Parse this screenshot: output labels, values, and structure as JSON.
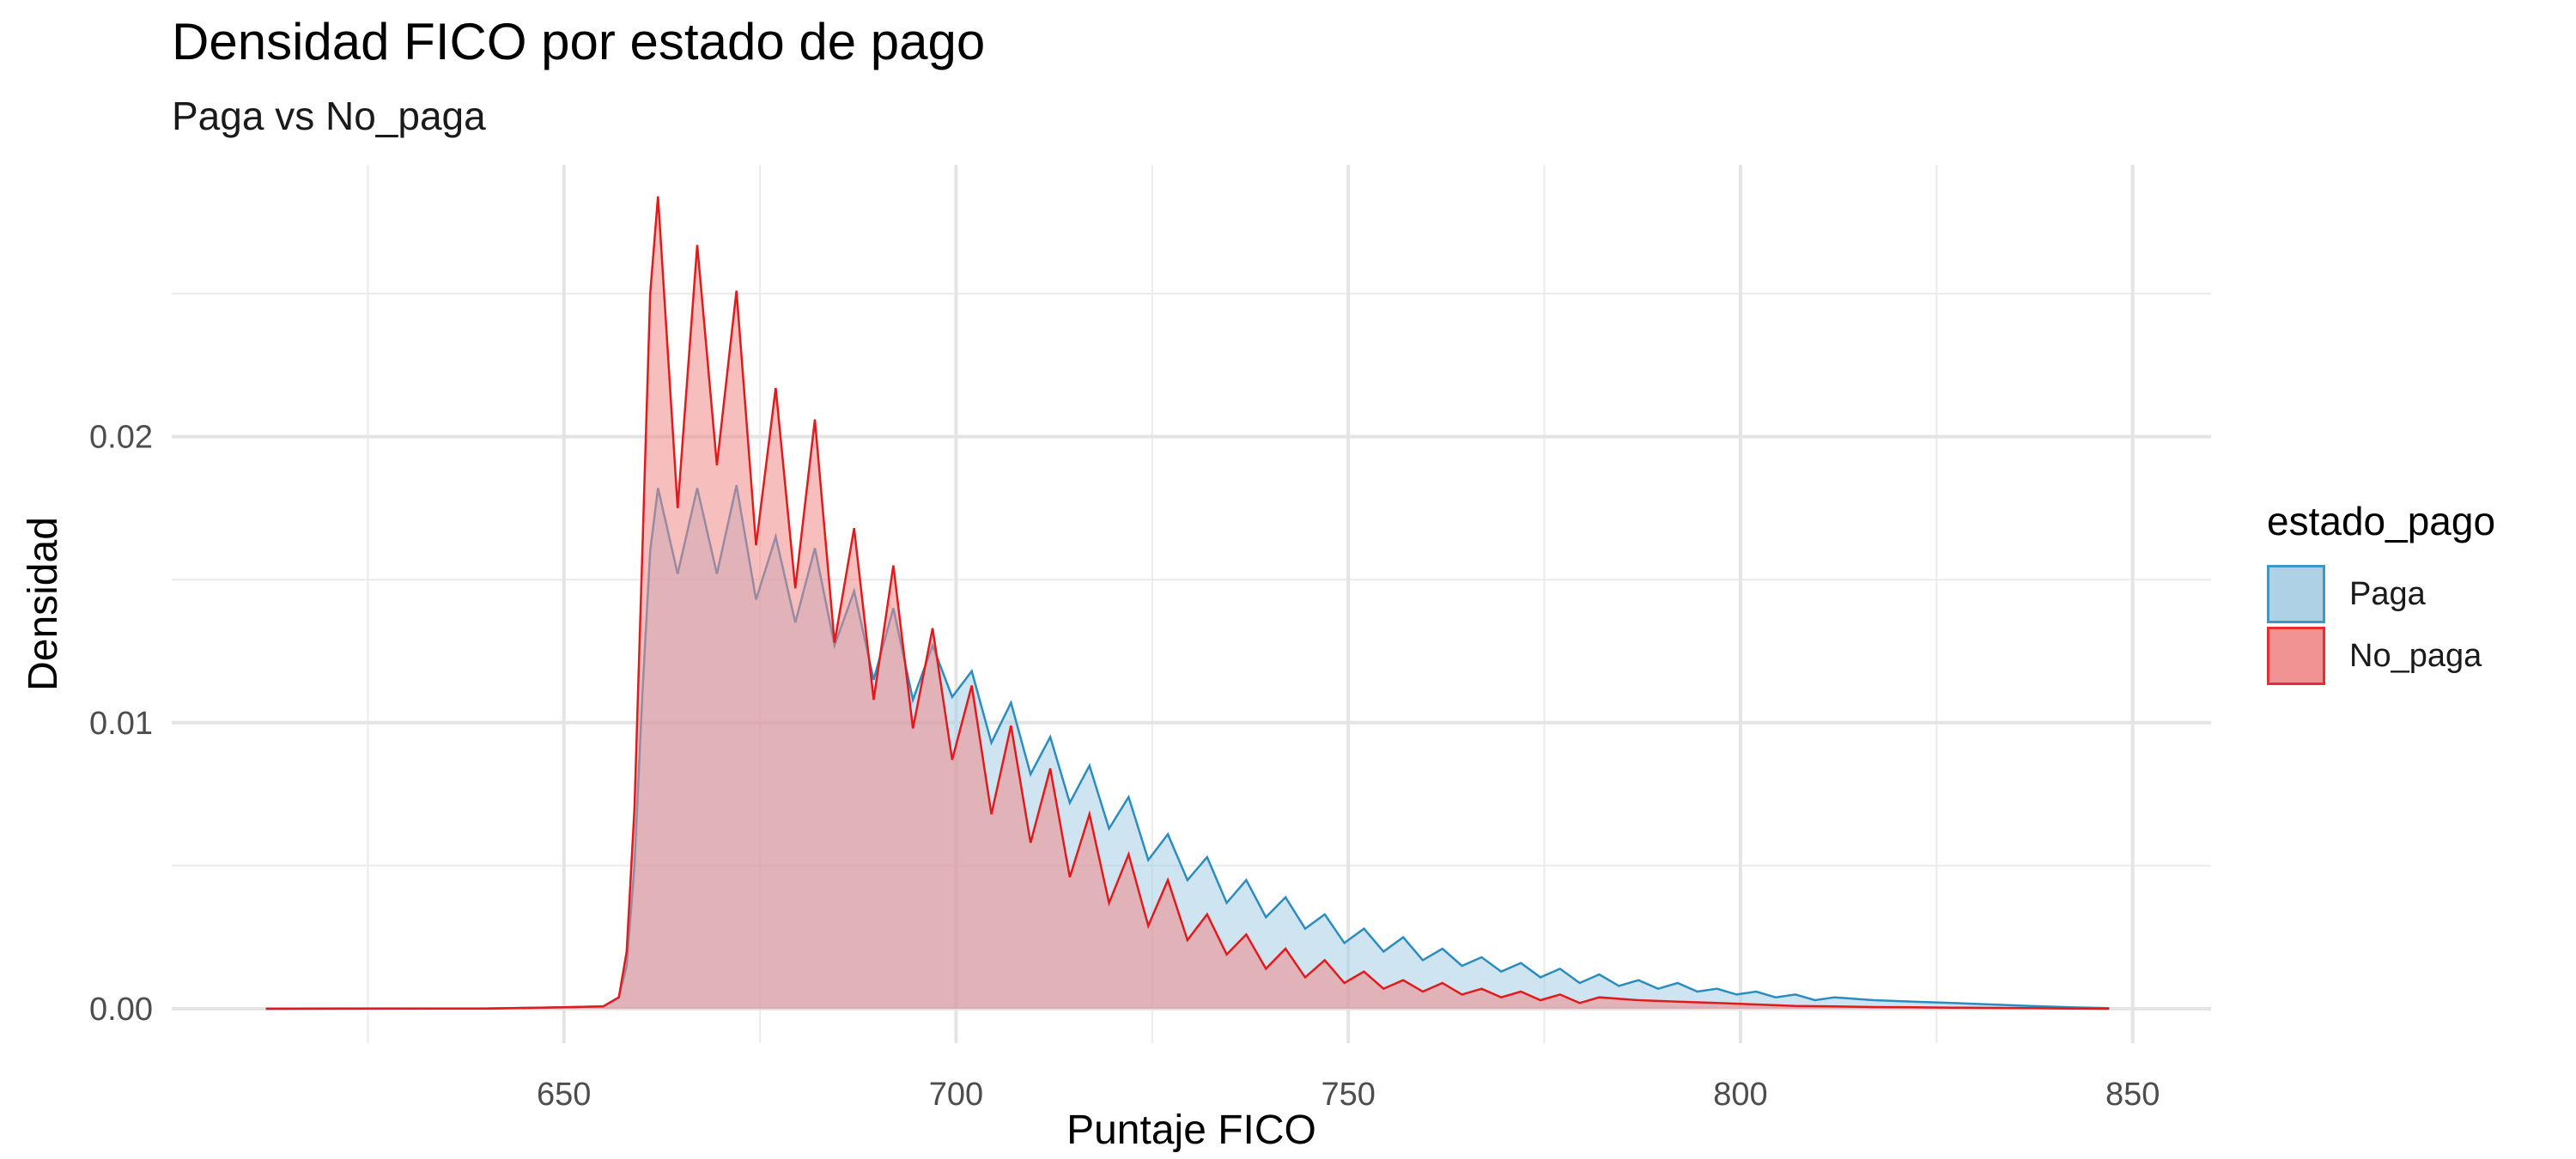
{
  "chart_data": {
    "type": "area",
    "title": "Densidad FICO por estado de pago",
    "subtitle": "Paga vs No_paga",
    "xlabel": "Puntaje FICO",
    "ylabel": "Densidad",
    "xlim": [
      600,
      860
    ],
    "ylim": [
      -0.0012,
      0.0295
    ],
    "x_ticks": [
      650,
      700,
      750,
      800,
      850
    ],
    "x_tick_labels": [
      "650",
      "700",
      "750",
      "800",
      "850"
    ],
    "y_ticks": [
      0.0,
      0.01,
      0.02
    ],
    "y_tick_labels": [
      "0.00",
      "0.01",
      "0.02"
    ],
    "grid": true,
    "legend": {
      "title": "estado_pago",
      "position": "right"
    },
    "series": [
      {
        "name": "Paga",
        "color": "#2b8cbe",
        "fill": "#a6cde3",
        "points": [
          [
            612,
            0
          ],
          [
            640,
            1e-05
          ],
          [
            650,
            5e-05
          ],
          [
            655,
            8e-05
          ],
          [
            657,
            0.0004
          ],
          [
            658,
            0.0015
          ],
          [
            659,
            0.005
          ],
          [
            660,
            0.011
          ],
          [
            661,
            0.016
          ],
          [
            662,
            0.0182
          ],
          [
            664.5,
            0.0152
          ],
          [
            667,
            0.0182
          ],
          [
            669.5,
            0.0152
          ],
          [
            672,
            0.0183
          ],
          [
            674.5,
            0.0143
          ],
          [
            677,
            0.0165
          ],
          [
            679.5,
            0.0135
          ],
          [
            682,
            0.0161
          ],
          [
            684.5,
            0.0127
          ],
          [
            687,
            0.0146
          ],
          [
            689.5,
            0.0115
          ],
          [
            692,
            0.014
          ],
          [
            694.5,
            0.0108
          ],
          [
            697,
            0.0127
          ],
          [
            699.5,
            0.0109
          ],
          [
            702,
            0.0118
          ],
          [
            704.5,
            0.0093
          ],
          [
            707,
            0.0107
          ],
          [
            709.5,
            0.0082
          ],
          [
            712,
            0.0095
          ],
          [
            714.5,
            0.0072
          ],
          [
            717,
            0.0085
          ],
          [
            719.5,
            0.0063
          ],
          [
            722,
            0.0074
          ],
          [
            724.5,
            0.0052
          ],
          [
            727,
            0.0061
          ],
          [
            729.5,
            0.0045
          ],
          [
            732,
            0.0053
          ],
          [
            734.5,
            0.0037
          ],
          [
            737,
            0.0045
          ],
          [
            739.5,
            0.0032
          ],
          [
            742,
            0.0039
          ],
          [
            744.5,
            0.0028
          ],
          [
            747,
            0.0033
          ],
          [
            749.5,
            0.0023
          ],
          [
            752,
            0.0028
          ],
          [
            754.5,
            0.002
          ],
          [
            757,
            0.0025
          ],
          [
            759.5,
            0.0017
          ],
          [
            762,
            0.0021
          ],
          [
            764.5,
            0.0015
          ],
          [
            767,
            0.0018
          ],
          [
            769.5,
            0.0013
          ],
          [
            772,
            0.0016
          ],
          [
            774.5,
            0.0011
          ],
          [
            777,
            0.0014
          ],
          [
            779.5,
            0.0009
          ],
          [
            782,
            0.0012
          ],
          [
            784.5,
            0.0008
          ],
          [
            787,
            0.001
          ],
          [
            789.5,
            0.0007
          ],
          [
            792,
            0.0009
          ],
          [
            794.5,
            0.0006
          ],
          [
            797,
            0.0007
          ],
          [
            799.5,
            0.0005
          ],
          [
            802,
            0.0006
          ],
          [
            804.5,
            0.0004
          ],
          [
            807,
            0.0005
          ],
          [
            809.5,
            0.0003
          ],
          [
            812,
            0.0004
          ],
          [
            817,
            0.0003
          ],
          [
            822,
            0.00025
          ],
          [
            827,
            0.0002
          ],
          [
            832,
            0.00015
          ],
          [
            837,
            0.0001
          ],
          [
            842,
            5e-05
          ],
          [
            847,
            2e-05
          ]
        ]
      },
      {
        "name": "No_paga",
        "color": "#e31a1c",
        "fill": "#f08888",
        "points": [
          [
            612,
            0
          ],
          [
            640,
            1e-05
          ],
          [
            650,
            5e-05
          ],
          [
            655,
            8e-05
          ],
          [
            657,
            0.0004
          ],
          [
            658,
            0.002
          ],
          [
            659,
            0.007
          ],
          [
            660,
            0.016
          ],
          [
            661,
            0.025
          ],
          [
            662,
            0.0284
          ],
          [
            664.5,
            0.0175
          ],
          [
            667,
            0.0267
          ],
          [
            669.5,
            0.019
          ],
          [
            672,
            0.0251
          ],
          [
            674.5,
            0.0162
          ],
          [
            677,
            0.0217
          ],
          [
            679.5,
            0.0147
          ],
          [
            682,
            0.0206
          ],
          [
            684.5,
            0.0128
          ],
          [
            687,
            0.0168
          ],
          [
            689.5,
            0.0108
          ],
          [
            692,
            0.0155
          ],
          [
            694.5,
            0.0098
          ],
          [
            697,
            0.0133
          ],
          [
            699.5,
            0.0087
          ],
          [
            702,
            0.0113
          ],
          [
            704.5,
            0.0068
          ],
          [
            707,
            0.0099
          ],
          [
            709.5,
            0.0058
          ],
          [
            712,
            0.0084
          ],
          [
            714.5,
            0.0046
          ],
          [
            717,
            0.0068
          ],
          [
            719.5,
            0.0037
          ],
          [
            722,
            0.0054
          ],
          [
            724.5,
            0.0029
          ],
          [
            727,
            0.0045
          ],
          [
            729.5,
            0.0024
          ],
          [
            732,
            0.0033
          ],
          [
            734.5,
            0.0019
          ],
          [
            737,
            0.0026
          ],
          [
            739.5,
            0.0014
          ],
          [
            742,
            0.0021
          ],
          [
            744.5,
            0.0011
          ],
          [
            747,
            0.0017
          ],
          [
            749.5,
            0.0009
          ],
          [
            752,
            0.0013
          ],
          [
            754.5,
            0.0007
          ],
          [
            757,
            0.001
          ],
          [
            759.5,
            0.0006
          ],
          [
            762,
            0.0009
          ],
          [
            764.5,
            0.0005
          ],
          [
            767,
            0.0007
          ],
          [
            769.5,
            0.0004
          ],
          [
            772,
            0.0006
          ],
          [
            774.5,
            0.0003
          ],
          [
            777,
            0.0005
          ],
          [
            779.5,
            0.0002
          ],
          [
            782,
            0.0004
          ],
          [
            787,
            0.0003
          ],
          [
            792,
            0.00025
          ],
          [
            797,
            0.0002
          ],
          [
            802,
            0.00015
          ],
          [
            807,
            0.0001
          ],
          [
            812,
            8e-05
          ],
          [
            817,
            6e-05
          ],
          [
            822,
            5e-05
          ],
          [
            827,
            4e-05
          ],
          [
            832,
            3e-05
          ],
          [
            837,
            2e-05
          ],
          [
            842,
            1e-05
          ],
          [
            847,
            0
          ]
        ]
      }
    ]
  }
}
